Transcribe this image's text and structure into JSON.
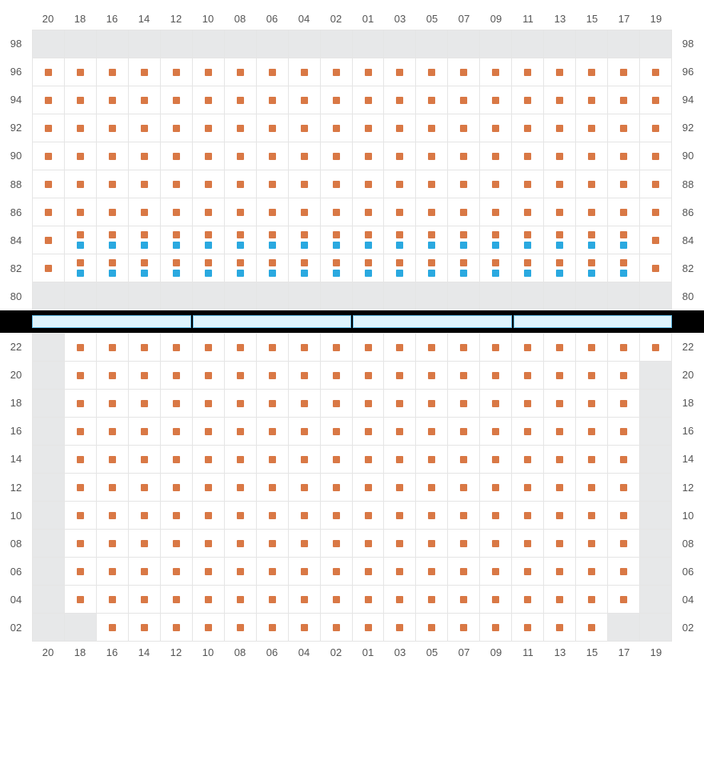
{
  "colors": {
    "seat_available": "#d97845",
    "seat_special": "#2aa9e0",
    "disabled_cell": "#e7e8e9",
    "grid_line": "#e5e5e5",
    "label_text": "#555555",
    "divider_bg": "#000000",
    "bar_fill": "#def3fc",
    "bar_border": "#5fb9e4"
  },
  "columns": [
    "20",
    "18",
    "16",
    "14",
    "12",
    "10",
    "08",
    "06",
    "04",
    "02",
    "01",
    "03",
    "05",
    "07",
    "09",
    "11",
    "13",
    "15",
    "17",
    "19"
  ],
  "top_section": {
    "rows": [
      "98",
      "96",
      "94",
      "92",
      "90",
      "88",
      "86",
      "84",
      "82",
      "80"
    ],
    "cells": [
      {
        "row": "98",
        "type": "disabled_all"
      },
      {
        "row": "96",
        "type": "orange_all"
      },
      {
        "row": "94",
        "type": "orange_all"
      },
      {
        "row": "92",
        "type": "orange_all"
      },
      {
        "row": "90",
        "type": "orange_all"
      },
      {
        "row": "88",
        "type": "orange_all"
      },
      {
        "row": "86",
        "type": "orange_all"
      },
      {
        "row": "84",
        "type": "stacked",
        "pattern": {
          "first": "orange",
          "middle": "orange_blue",
          "last": "orange"
        }
      },
      {
        "row": "82",
        "type": "stacked",
        "pattern": {
          "first": "orange",
          "middle": "orange_blue",
          "last": "orange"
        }
      },
      {
        "row": "80",
        "type": "disabled_all"
      }
    ]
  },
  "bottom_section": {
    "rows": [
      "22",
      "20",
      "18",
      "16",
      "14",
      "12",
      "10",
      "08",
      "06",
      "04",
      "02"
    ],
    "disabled_left": {
      "22": [
        "20"
      ],
      "20": [
        "20"
      ],
      "18": [
        "20"
      ],
      "16": [
        "20"
      ],
      "14": [
        "20"
      ],
      "12": [
        "20"
      ],
      "10": [
        "20"
      ],
      "08": [
        "20"
      ],
      "06": [
        "20"
      ],
      "04": [
        "20"
      ],
      "02": [
        "20",
        "18"
      ]
    },
    "disabled_right": {
      "22": [],
      "20": [
        "19"
      ],
      "18": [
        "19"
      ],
      "16": [
        "19"
      ],
      "14": [
        "19"
      ],
      "12": [
        "19"
      ],
      "10": [
        "19"
      ],
      "08": [
        "19"
      ],
      "06": [
        "19"
      ],
      "04": [
        "19"
      ],
      "02": [
        "17",
        "19"
      ]
    }
  },
  "divider_bars": 4
}
